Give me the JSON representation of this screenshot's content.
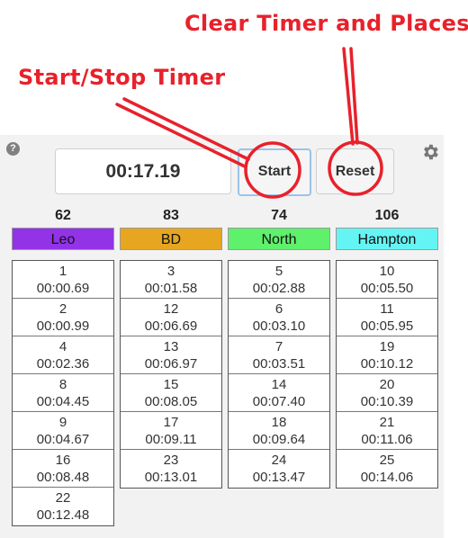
{
  "annotations": {
    "clear": "Clear Timer and Places",
    "start": "Start/Stop Timer"
  },
  "toolbar": {
    "help_icon": "?",
    "timer": "00:17.19",
    "start_label": "Start",
    "reset_label": "Reset"
  },
  "colors": {
    "annotation": "#e8212b"
  },
  "teams": [
    {
      "name": "Leo",
      "score": "62",
      "color": "#9233e8",
      "places": [
        {
          "place": "1",
          "time": "00:00.69"
        },
        {
          "place": "2",
          "time": "00:00.99"
        },
        {
          "place": "4",
          "time": "00:02.36"
        },
        {
          "place": "8",
          "time": "00:04.45"
        },
        {
          "place": "9",
          "time": "00:04.67"
        },
        {
          "place": "16",
          "time": "00:08.48"
        },
        {
          "place": "22",
          "time": "00:12.48"
        }
      ]
    },
    {
      "name": "BD",
      "score": "83",
      "color": "#e7a61f",
      "places": [
        {
          "place": "3",
          "time": "00:01.58"
        },
        {
          "place": "12",
          "time": "00:06.69"
        },
        {
          "place": "13",
          "time": "00:06.97"
        },
        {
          "place": "15",
          "time": "00:08.05"
        },
        {
          "place": "17",
          "time": "00:09.11"
        },
        {
          "place": "23",
          "time": "00:13.01"
        }
      ]
    },
    {
      "name": "North",
      "score": "74",
      "color": "#5ff06c",
      "places": [
        {
          "place": "5",
          "time": "00:02.88"
        },
        {
          "place": "6",
          "time": "00:03.10"
        },
        {
          "place": "7",
          "time": "00:03.51"
        },
        {
          "place": "14",
          "time": "00:07.40"
        },
        {
          "place": "18",
          "time": "00:09.64"
        },
        {
          "place": "24",
          "time": "00:13.47"
        }
      ]
    },
    {
      "name": "Hampton",
      "score": "106",
      "color": "#65f4f4",
      "places": [
        {
          "place": "10",
          "time": "00:05.50"
        },
        {
          "place": "11",
          "time": "00:05.95"
        },
        {
          "place": "19",
          "time": "00:10.12"
        },
        {
          "place": "20",
          "time": "00:10.39"
        },
        {
          "place": "21",
          "time": "00:11.06"
        },
        {
          "place": "25",
          "time": "00:14.06"
        }
      ]
    }
  ]
}
